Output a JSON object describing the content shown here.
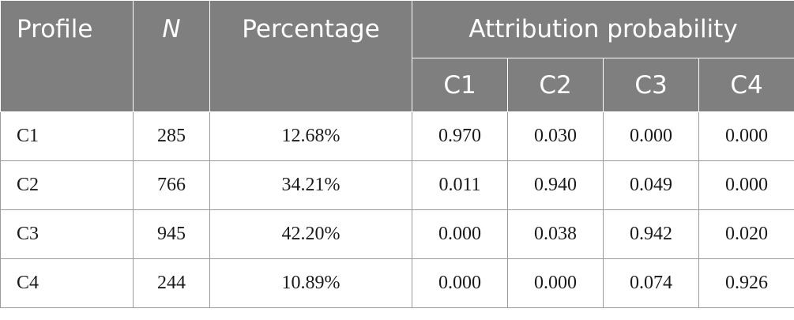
{
  "table": {
    "headers": {
      "profile": "Profile",
      "n": "N",
      "percentage": "Percentage",
      "attribution_probability": "Attribution probability",
      "sub": [
        "C1",
        "C2",
        "C3",
        "C4"
      ]
    },
    "rows": [
      {
        "profile": "C1",
        "n": "285",
        "percentage": "12.68%",
        "probs": [
          "0.970",
          "0.030",
          "0.000",
          "0.000"
        ]
      },
      {
        "profile": "C2",
        "n": "766",
        "percentage": "34.21%",
        "probs": [
          "0.011",
          "0.940",
          "0.049",
          "0.000"
        ]
      },
      {
        "profile": "C3",
        "n": "945",
        "percentage": "42.20%",
        "probs": [
          "0.000",
          "0.038",
          "0.942",
          "0.020"
        ]
      },
      {
        "profile": "C4",
        "n": "244",
        "percentage": "10.89%",
        "probs": [
          "0.000",
          "0.000",
          "0.074",
          "0.926"
        ]
      }
    ],
    "colors": {
      "header_bg": "#7f7f7f",
      "header_text": "#ffffff",
      "border": "#9a9a9a"
    }
  }
}
